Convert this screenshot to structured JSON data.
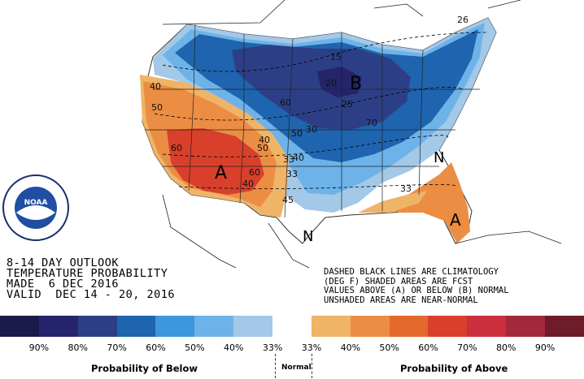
{
  "outlook": {
    "title_line1": "8-14 DAY OUTLOOK",
    "title_line2": "TEMPERATURE PROBABILITY",
    "title_line3": "MADE  6 DEC 2016",
    "title_line4": "VALID  DEC 14 - 20, 2016"
  },
  "notes": {
    "line1": "DASHED BLACK LINES ARE CLIMATOLOGY",
    "line2": "(DEG F) SHADED AREAS ARE FCST",
    "line3": "VALUES ABOVE (A) OR BELOW (B) NORMAL",
    "line4": "UNSHADED AREAS ARE NEAR-NORMAL"
  },
  "logo": {
    "text": "NATIONAL OCEANIC AND ATMOSPHERIC ADMINISTRATION · U.S. DEPARTMENT OF COMMERCE",
    "abbr": "NOAA",
    "icon": "noaa-seal-icon"
  },
  "map_labels": {
    "below_center": "B",
    "above_southwest": "A",
    "above_florida": "A",
    "normal_gulf": "N",
    "normal_midatlantic": "N",
    "contours": [
      "15",
      "20",
      "25",
      "26",
      "40",
      "50",
      "60",
      "70",
      "40",
      "50",
      "60",
      "40",
      "50",
      "45",
      "33",
      "33",
      "33",
      "40",
      "60",
      "30"
    ]
  },
  "legend": {
    "colors": [
      "#1b1a4a",
      "#25246a",
      "#2c3f86",
      "#1f64ae",
      "#3e96dc",
      "#6db3e9",
      "#a3c8e8",
      "#ffffff",
      "#efb468",
      "#ec8d44",
      "#e36a2c",
      "#d8402b",
      "#cb2f3e",
      "#a3283a",
      "#6e1c28"
    ],
    "ticks": [
      "90%",
      "80%",
      "70%",
      "60%",
      "50%",
      "40%",
      "33%",
      "33%",
      "40%",
      "50%",
      "60%",
      "70%",
      "80%",
      "90%"
    ],
    "below_caption": "Probability of Below",
    "normal_caption": "Normal",
    "above_caption": "Probability of Above"
  }
}
